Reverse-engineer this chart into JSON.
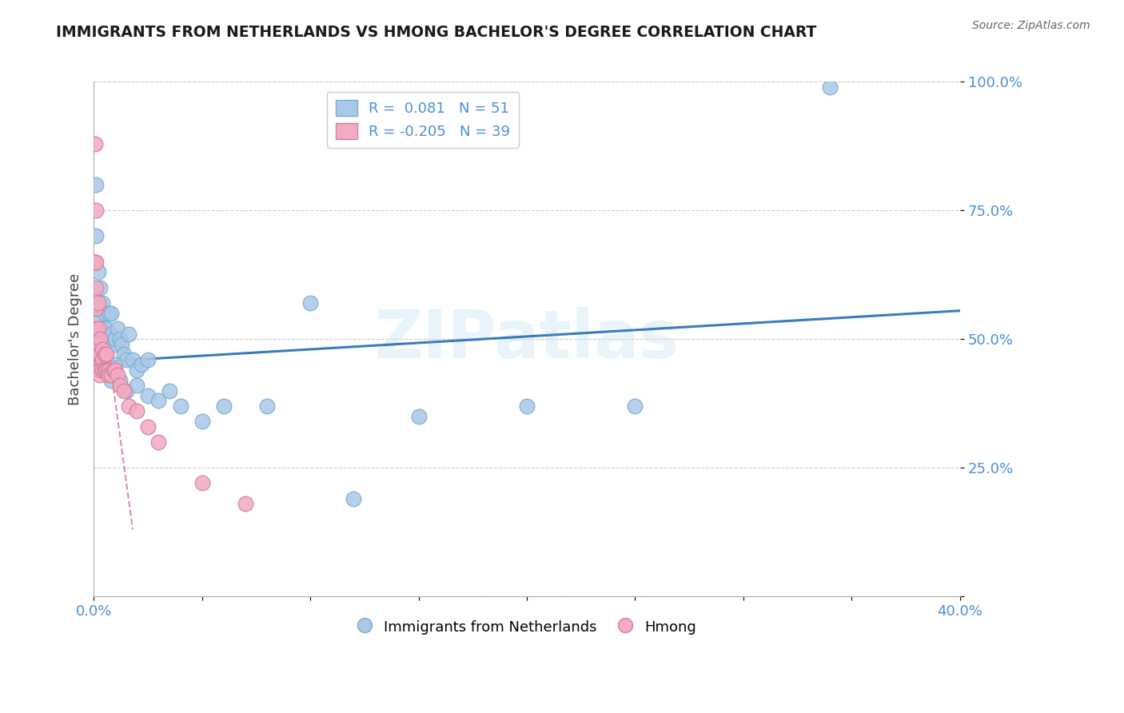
{
  "title": "IMMIGRANTS FROM NETHERLANDS VS HMONG BACHELOR'S DEGREE CORRELATION CHART",
  "source": "Source: ZipAtlas.com",
  "ylabel": "Bachelor's Degree",
  "xlim": [
    0.0,
    0.4
  ],
  "ylim": [
    0.0,
    1.0
  ],
  "blue_color": "#aac8e8",
  "pink_color": "#f4aac0",
  "blue_edge_color": "#7aaed0",
  "pink_edge_color": "#d080a0",
  "blue_line_color": "#3a7bbf",
  "pink_line_color": "#d04060",
  "watermark": "ZIPatlas",
  "nl_x": [
    0.001,
    0.001,
    0.001,
    0.002,
    0.002,
    0.003,
    0.003,
    0.003,
    0.004,
    0.004,
    0.005,
    0.005,
    0.005,
    0.006,
    0.007,
    0.007,
    0.008,
    0.008,
    0.009,
    0.01,
    0.011,
    0.012,
    0.013,
    0.014,
    0.015,
    0.016,
    0.018,
    0.02,
    0.022,
    0.025,
    0.003,
    0.004,
    0.006,
    0.008,
    0.01,
    0.012,
    0.015,
    0.02,
    0.025,
    0.03,
    0.035,
    0.04,
    0.05,
    0.06,
    0.08,
    0.1,
    0.12,
    0.15,
    0.2,
    0.25,
    0.34
  ],
  "nl_y": [
    0.8,
    0.7,
    0.54,
    0.63,
    0.56,
    0.6,
    0.56,
    0.52,
    0.57,
    0.52,
    0.55,
    0.52,
    0.48,
    0.52,
    0.55,
    0.5,
    0.55,
    0.51,
    0.49,
    0.5,
    0.52,
    0.5,
    0.49,
    0.47,
    0.46,
    0.51,
    0.46,
    0.44,
    0.45,
    0.46,
    0.47,
    0.44,
    0.44,
    0.42,
    0.45,
    0.42,
    0.4,
    0.41,
    0.39,
    0.38,
    0.4,
    0.37,
    0.34,
    0.37,
    0.37,
    0.57,
    0.19,
    0.35,
    0.37,
    0.37,
    0.99
  ],
  "hmong_x": [
    0.0005,
    0.0005,
    0.001,
    0.001,
    0.001,
    0.001,
    0.001,
    0.001,
    0.001,
    0.002,
    0.002,
    0.002,
    0.002,
    0.002,
    0.003,
    0.003,
    0.003,
    0.003,
    0.004,
    0.004,
    0.004,
    0.005,
    0.005,
    0.006,
    0.006,
    0.007,
    0.007,
    0.008,
    0.009,
    0.01,
    0.011,
    0.012,
    0.014,
    0.016,
    0.02,
    0.025,
    0.03,
    0.05,
    0.07
  ],
  "hmong_y": [
    0.88,
    0.65,
    0.75,
    0.65,
    0.6,
    0.56,
    0.52,
    0.49,
    0.46,
    0.57,
    0.52,
    0.49,
    0.47,
    0.44,
    0.5,
    0.47,
    0.44,
    0.43,
    0.48,
    0.46,
    0.44,
    0.47,
    0.44,
    0.47,
    0.44,
    0.44,
    0.43,
    0.43,
    0.44,
    0.44,
    0.43,
    0.41,
    0.4,
    0.37,
    0.36,
    0.33,
    0.3,
    0.22,
    0.18
  ],
  "blue_line_x0": 0.0,
  "blue_line_y0": 0.455,
  "blue_line_x1": 0.4,
  "blue_line_y1": 0.555,
  "pink_line_solid_x0": 0.0,
  "pink_line_solid_y0": 0.5,
  "pink_line_solid_x1": 0.008,
  "pink_line_solid_y1": 0.44,
  "pink_line_dash_x0": 0.008,
  "pink_line_dash_y0": 0.44,
  "pink_line_dash_x1": 0.018,
  "pink_line_dash_y1": 0.13
}
